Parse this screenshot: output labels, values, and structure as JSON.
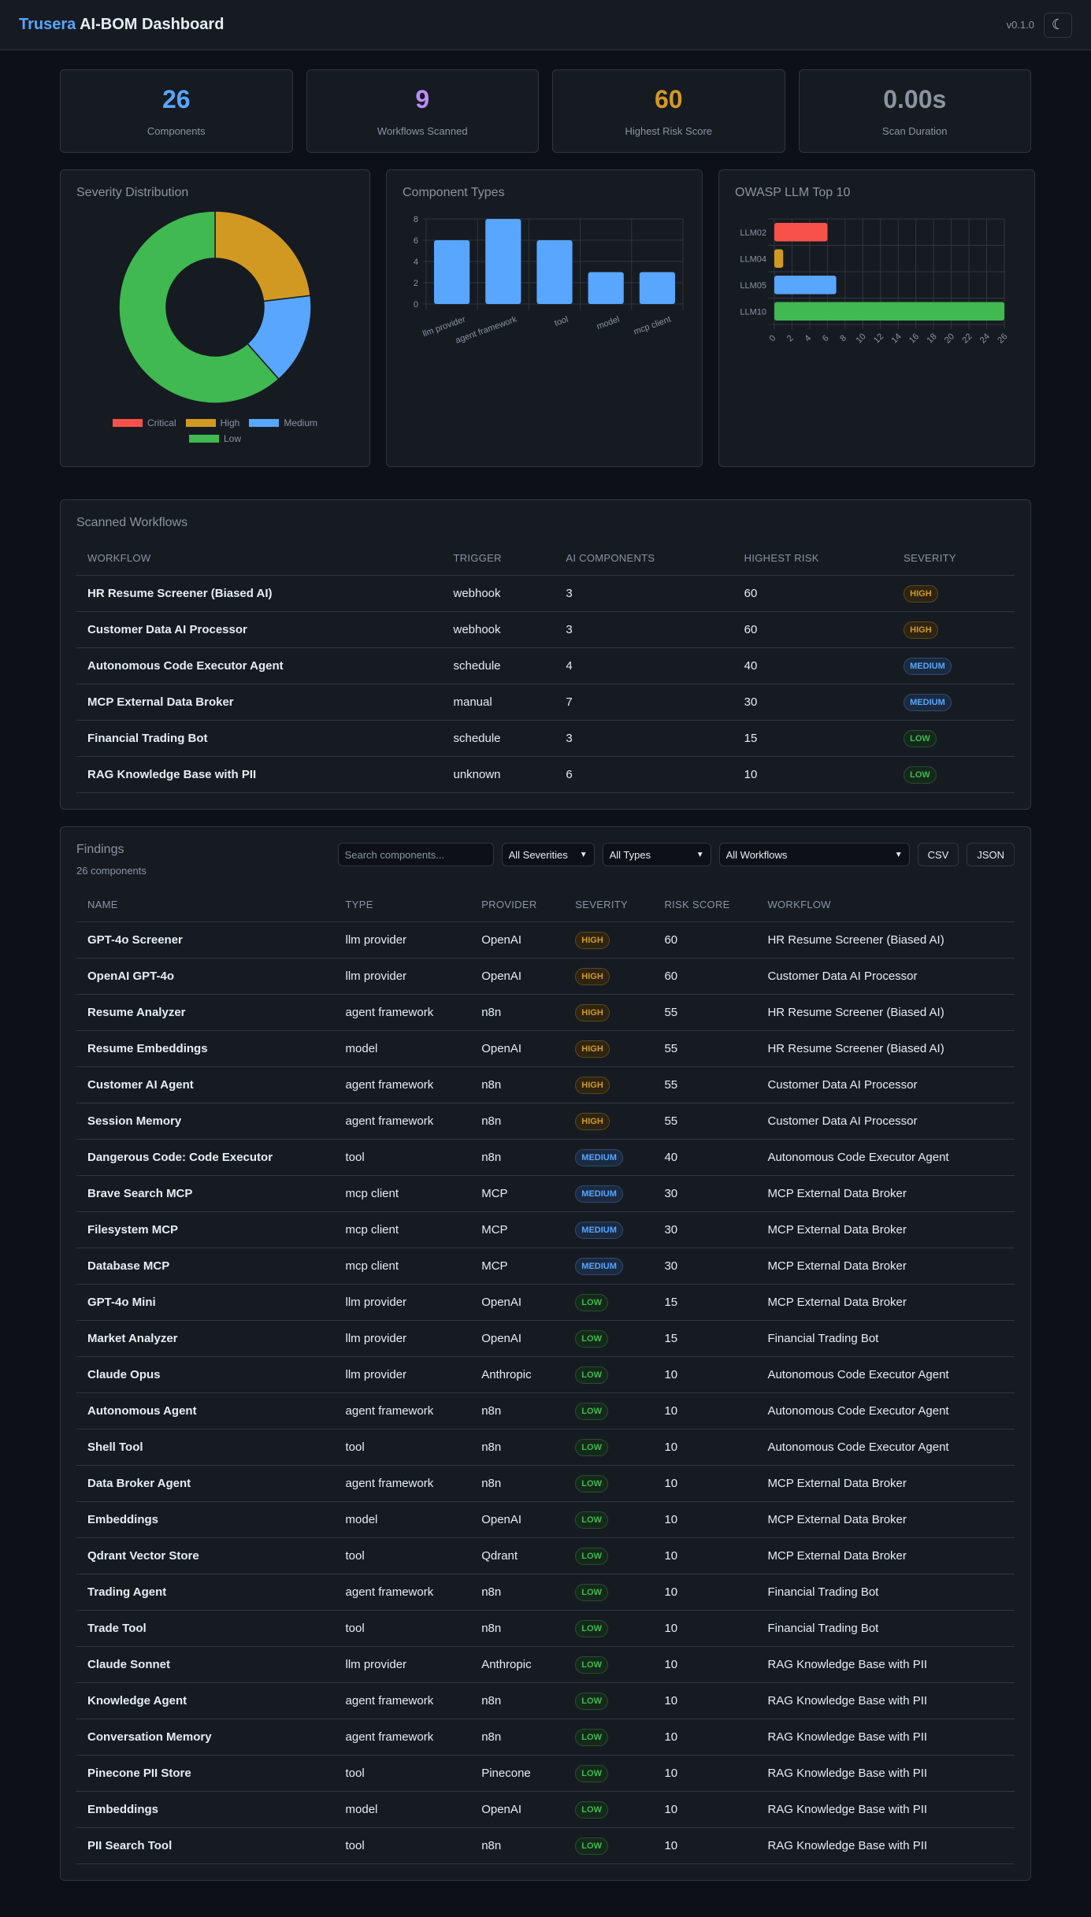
{
  "header": {
    "brand_accent": "Trusera",
    "brand_rest": "AI-BOM Dashboard",
    "version": "v0.1.0",
    "theme_toggle_icon": "☾"
  },
  "stats": [
    {
      "value": "26",
      "label": "Components",
      "color": "#58a6ff"
    },
    {
      "value": "9",
      "label": "Workflows Scanned",
      "color": "#bc8cff"
    },
    {
      "value": "60",
      "label": "Highest Risk Score",
      "color": "#d29922"
    },
    {
      "value": "0.00s",
      "label": "Scan Duration",
      "color": "#8b949e"
    }
  ],
  "charts": {
    "severity_title": "Severity Distribution",
    "types_title": "Component Types",
    "owasp_title": "OWASP LLM Top 10"
  },
  "chart_data": [
    {
      "type": "pie",
      "title": "Severity Distribution",
      "variant": "doughnut",
      "categories": [
        "Critical",
        "High",
        "Medium",
        "Low"
      ],
      "values": [
        0,
        6,
        4,
        16
      ],
      "colors": [
        "#f85149",
        "#d29922",
        "#58a6ff",
        "#3fb950"
      ],
      "legend_position": "bottom"
    },
    {
      "type": "bar",
      "title": "Component Types",
      "categories": [
        "llm provider",
        "agent framework",
        "tool",
        "model",
        "mcp client"
      ],
      "values": [
        6,
        8,
        6,
        3,
        3
      ],
      "color": "#58a6ff",
      "ylim": [
        0,
        8
      ],
      "yticks": [
        0,
        2,
        4,
        6,
        8
      ],
      "grid": true
    },
    {
      "type": "bar",
      "orientation": "horizontal",
      "title": "OWASP LLM Top 10",
      "categories": [
        "LLM02",
        "LLM04",
        "LLM05",
        "LLM10"
      ],
      "values": [
        6,
        1,
        7,
        26
      ],
      "colors": [
        "#f85149",
        "#d29922",
        "#58a6ff",
        "#3fb950"
      ],
      "xlim": [
        0,
        26
      ],
      "xticks": [
        0,
        2,
        4,
        6,
        8,
        10,
        12,
        14,
        16,
        18,
        20,
        22,
        24,
        26
      ],
      "grid": true
    }
  ],
  "workflows": {
    "title": "Scanned Workflows",
    "columns": [
      "WORKFLOW",
      "TRIGGER",
      "AI COMPONENTS",
      "HIGHEST RISK",
      "SEVERITY"
    ],
    "rows": [
      {
        "name": "HR Resume Screener (Biased AI)",
        "trigger": "webhook",
        "components": "3",
        "risk": "60",
        "severity": "HIGH"
      },
      {
        "name": "Customer Data AI Processor",
        "trigger": "webhook",
        "components": "3",
        "risk": "60",
        "severity": "HIGH"
      },
      {
        "name": "Autonomous Code Executor Agent",
        "trigger": "schedule",
        "components": "4",
        "risk": "40",
        "severity": "MEDIUM"
      },
      {
        "name": "MCP External Data Broker",
        "trigger": "manual",
        "components": "7",
        "risk": "30",
        "severity": "MEDIUM"
      },
      {
        "name": "Financial Trading Bot",
        "trigger": "schedule",
        "components": "3",
        "risk": "15",
        "severity": "LOW"
      },
      {
        "name": "RAG Knowledge Base with PII",
        "trigger": "unknown",
        "components": "6",
        "risk": "10",
        "severity": "LOW"
      }
    ]
  },
  "findings": {
    "title": "Findings",
    "count_label": "26 components",
    "search_placeholder": "Search components...",
    "severity_filter": "All Severities",
    "type_filter": "All Types",
    "workflow_filter": "All Workflows",
    "csv_label": "CSV",
    "json_label": "JSON",
    "columns": [
      "NAME",
      "TYPE",
      "PROVIDER",
      "SEVERITY",
      "RISK SCORE",
      "WORKFLOW"
    ],
    "rows": [
      {
        "name": "GPT-4o Screener",
        "type": "llm provider",
        "provider": "OpenAI",
        "severity": "HIGH",
        "risk": "60",
        "workflow": "HR Resume Screener (Biased AI)"
      },
      {
        "name": "OpenAI GPT-4o",
        "type": "llm provider",
        "provider": "OpenAI",
        "severity": "HIGH",
        "risk": "60",
        "workflow": "Customer Data AI Processor"
      },
      {
        "name": "Resume Analyzer",
        "type": "agent framework",
        "provider": "n8n",
        "severity": "HIGH",
        "risk": "55",
        "workflow": "HR Resume Screener (Biased AI)"
      },
      {
        "name": "Resume Embeddings",
        "type": "model",
        "provider": "OpenAI",
        "severity": "HIGH",
        "risk": "55",
        "workflow": "HR Resume Screener (Biased AI)"
      },
      {
        "name": "Customer AI Agent",
        "type": "agent framework",
        "provider": "n8n",
        "severity": "HIGH",
        "risk": "55",
        "workflow": "Customer Data AI Processor"
      },
      {
        "name": "Session Memory",
        "type": "agent framework",
        "provider": "n8n",
        "severity": "HIGH",
        "risk": "55",
        "workflow": "Customer Data AI Processor"
      },
      {
        "name": "Dangerous Code: Code Executor",
        "type": "tool",
        "provider": "n8n",
        "severity": "MEDIUM",
        "risk": "40",
        "workflow": "Autonomous Code Executor Agent"
      },
      {
        "name": "Brave Search MCP",
        "type": "mcp client",
        "provider": "MCP",
        "severity": "MEDIUM",
        "risk": "30",
        "workflow": "MCP External Data Broker"
      },
      {
        "name": "Filesystem MCP",
        "type": "mcp client",
        "provider": "MCP",
        "severity": "MEDIUM",
        "risk": "30",
        "workflow": "MCP External Data Broker"
      },
      {
        "name": "Database MCP",
        "type": "mcp client",
        "provider": "MCP",
        "severity": "MEDIUM",
        "risk": "30",
        "workflow": "MCP External Data Broker"
      },
      {
        "name": "GPT-4o Mini",
        "type": "llm provider",
        "provider": "OpenAI",
        "severity": "LOW",
        "risk": "15",
        "workflow": "MCP External Data Broker"
      },
      {
        "name": "Market Analyzer",
        "type": "llm provider",
        "provider": "OpenAI",
        "severity": "LOW",
        "risk": "15",
        "workflow": "Financial Trading Bot"
      },
      {
        "name": "Claude Opus",
        "type": "llm provider",
        "provider": "Anthropic",
        "severity": "LOW",
        "risk": "10",
        "workflow": "Autonomous Code Executor Agent"
      },
      {
        "name": "Autonomous Agent",
        "type": "agent framework",
        "provider": "n8n",
        "severity": "LOW",
        "risk": "10",
        "workflow": "Autonomous Code Executor Agent"
      },
      {
        "name": "Shell Tool",
        "type": "tool",
        "provider": "n8n",
        "severity": "LOW",
        "risk": "10",
        "workflow": "Autonomous Code Executor Agent"
      },
      {
        "name": "Data Broker Agent",
        "type": "agent framework",
        "provider": "n8n",
        "severity": "LOW",
        "risk": "10",
        "workflow": "MCP External Data Broker"
      },
      {
        "name": "Embeddings",
        "type": "model",
        "provider": "OpenAI",
        "severity": "LOW",
        "risk": "10",
        "workflow": "MCP External Data Broker"
      },
      {
        "name": "Qdrant Vector Store",
        "type": "tool",
        "provider": "Qdrant",
        "severity": "LOW",
        "risk": "10",
        "workflow": "MCP External Data Broker"
      },
      {
        "name": "Trading Agent",
        "type": "agent framework",
        "provider": "n8n",
        "severity": "LOW",
        "risk": "10",
        "workflow": "Financial Trading Bot"
      },
      {
        "name": "Trade Tool",
        "type": "tool",
        "provider": "n8n",
        "severity": "LOW",
        "risk": "10",
        "workflow": "Financial Trading Bot"
      },
      {
        "name": "Claude Sonnet",
        "type": "llm provider",
        "provider": "Anthropic",
        "severity": "LOW",
        "risk": "10",
        "workflow": "RAG Knowledge Base with PII"
      },
      {
        "name": "Knowledge Agent",
        "type": "agent framework",
        "provider": "n8n",
        "severity": "LOW",
        "risk": "10",
        "workflow": "RAG Knowledge Base with PII"
      },
      {
        "name": "Conversation Memory",
        "type": "agent framework",
        "provider": "n8n",
        "severity": "LOW",
        "risk": "10",
        "workflow": "RAG Knowledge Base with PII"
      },
      {
        "name": "Pinecone PII Store",
        "type": "tool",
        "provider": "Pinecone",
        "severity": "LOW",
        "risk": "10",
        "workflow": "RAG Knowledge Base with PII"
      },
      {
        "name": "Embeddings",
        "type": "model",
        "provider": "OpenAI",
        "severity": "LOW",
        "risk": "10",
        "workflow": "RAG Knowledge Base with PII"
      },
      {
        "name": "PII Search Tool",
        "type": "tool",
        "provider": "n8n",
        "severity": "LOW",
        "risk": "10",
        "workflow": "RAG Knowledge Base with PII"
      }
    ]
  }
}
